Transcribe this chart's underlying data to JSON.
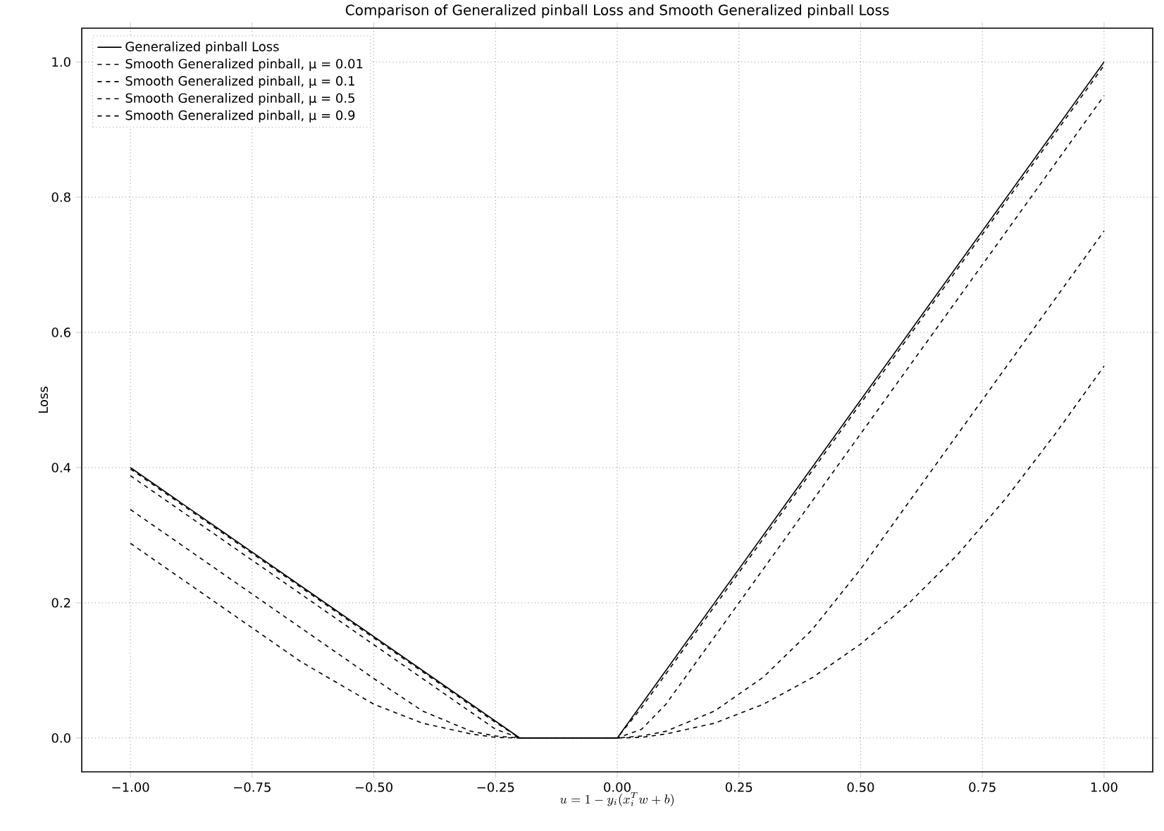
{
  "chart_data": {
    "type": "line",
    "title": "Comparison of Generalized pinball Loss and Smooth Generalized pinball Loss",
    "xlabel": "u = 1 - y_i(x_i^{T} w + b)",
    "ylabel": "Loss",
    "x": [
      -1,
      -0.8,
      -0.65,
      -0.5,
      -0.4,
      -0.3,
      -0.25,
      -0.2,
      0,
      0.05,
      0.1,
      0.2,
      0.3,
      0.4,
      0.5,
      0.6,
      0.7,
      0.8,
      0.9,
      1
    ],
    "series": [
      {
        "name": "Generalized pinball Loss",
        "color": "#000000",
        "line_style": "solid",
        "values": [
          0.4,
          0.3,
          0.225,
          0.15,
          0.1,
          0.05,
          0.025,
          0,
          0,
          0.05,
          0.1,
          0.2,
          0.3,
          0.4,
          0.5,
          0.6,
          0.7,
          0.8,
          0.9,
          1
        ]
      },
      {
        "name": "Smooth Generalized pinball, μ = 0.01",
        "color": "#000000",
        "line_style": "dashed",
        "values": [
          0.398,
          0.298,
          0.223,
          0.148,
          0.098,
          0.048,
          0.023,
          0,
          0,
          0.045,
          0.095,
          0.195,
          0.295,
          0.395,
          0.495,
          0.595,
          0.695,
          0.795,
          0.895,
          0.995
        ]
      },
      {
        "name": "Smooth Generalized pinball, μ = 0.1",
        "color": "#000000",
        "line_style": "dashed",
        "values": [
          0.388,
          0.288,
          0.213,
          0.138,
          0.088,
          0.038,
          0.013,
          0,
          0,
          0.013,
          0.05,
          0.15,
          0.25,
          0.35,
          0.45,
          0.55,
          0.65,
          0.75,
          0.85,
          0.95
        ]
      },
      {
        "name": "Smooth Generalized pinball, μ = 0.5",
        "color": "#000000",
        "line_style": "dashed",
        "values": [
          0.338,
          0.238,
          0.163,
          0.088,
          0.04,
          0.01,
          0.003,
          0,
          0,
          0.003,
          0.01,
          0.04,
          0.09,
          0.16,
          0.25,
          0.35,
          0.45,
          0.55,
          0.65,
          0.75
        ]
      },
      {
        "name": "Smooth Generalized pinball, μ = 0.9",
        "color": "#000000",
        "line_style": "dashed",
        "values": [
          0.288,
          0.188,
          0.113,
          0.05,
          0.022,
          0.006,
          0.001,
          0,
          0,
          0.001,
          0.006,
          0.022,
          0.05,
          0.089,
          0.139,
          0.2,
          0.272,
          0.356,
          0.45,
          0.55
        ]
      }
    ],
    "xlim": [
      -1.1,
      1.1
    ],
    "ylim": [
      -0.05,
      1.05
    ],
    "xticks": [
      {
        "value": -1,
        "label": "−1.00"
      },
      {
        "value": -0.75,
        "label": "−0.75"
      },
      {
        "value": -0.5,
        "label": "−0.50"
      },
      {
        "value": -0.25,
        "label": "−0.25"
      },
      {
        "value": 0,
        "label": "0.00"
      },
      {
        "value": 0.25,
        "label": "0.25"
      },
      {
        "value": 0.5,
        "label": "0.50"
      },
      {
        "value": 0.75,
        "label": "0.75"
      },
      {
        "value": 1,
        "label": "1.00"
      }
    ],
    "yticks": [
      {
        "value": 0,
        "label": "0.0"
      },
      {
        "value": 0.2,
        "label": "0.2"
      },
      {
        "value": 0.4,
        "label": "0.4"
      },
      {
        "value": 0.6,
        "label": "0.6"
      },
      {
        "value": 0.8,
        "label": "0.8"
      },
      {
        "value": 1,
        "label": "1.0"
      }
    ],
    "grid": true,
    "legend": "top left",
    "marker": "none"
  }
}
